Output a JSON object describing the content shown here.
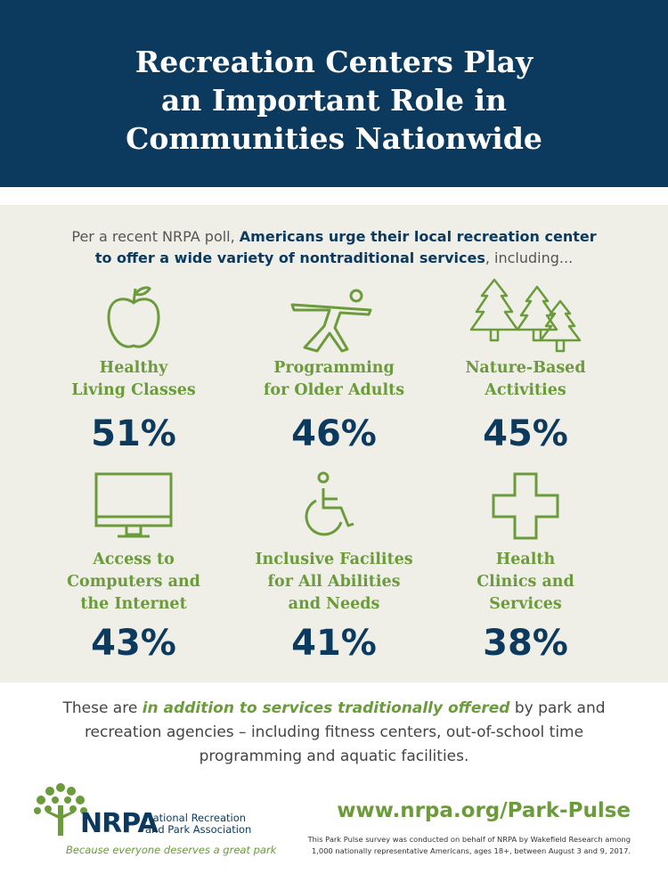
{
  "header": {
    "title": [
      "Recreation Centers Play",
      "an Important Role in",
      "Communities Nationwide"
    ]
  },
  "intro": {
    "before": "Per a recent NRPA poll, ",
    "emphasis": "Americans urge their local recreation center to offer a wide variety of nontraditional services",
    "after": ", including..."
  },
  "items": [
    {
      "label": [
        "Healthy",
        "Living Classes"
      ],
      "value": "51%"
    },
    {
      "label": [
        "Programming",
        "for Older Adults"
      ],
      "value": "46%"
    },
    {
      "label": [
        "Nature-Based",
        "Activities"
      ],
      "value": "45%"
    },
    {
      "label": [
        "Access to",
        "Computers and",
        "the Internet"
      ],
      "value": "43%"
    },
    {
      "label": [
        "Inclusive Facilites",
        "for All Abilities",
        "and Needs"
      ],
      "value": "41%"
    },
    {
      "label": [
        "Health",
        "Clinics and",
        "Services"
      ],
      "value": "38%"
    }
  ],
  "outro": {
    "before": "These are ",
    "emphasis": "in addition to services traditionally offered",
    "after": " by park and recreation agencies – including fitness centers, out-of-school time programming and aquatic facilities."
  },
  "footer": {
    "logo": "NRPA",
    "organization": [
      "National Recreation",
      "and Park Association"
    ],
    "tagline": "Because everyone deserves a great park",
    "url": "www.nrpa.org/Park-Pulse",
    "note": [
      "This Park Pulse survey was conducted on behalf of NRPA by Wakefield Research among",
      "1,000 nationally representative Americans, ages 18+, between August 3 and 9, 2017."
    ]
  }
}
